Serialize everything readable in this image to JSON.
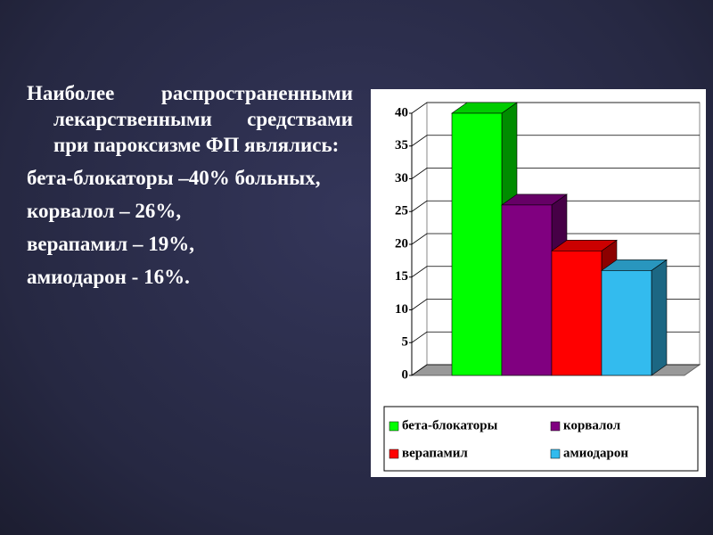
{
  "slide_text": {
    "intro": "Наиболее распространенными лекарственными средствами при пароксизме ФП являлись:",
    "items": [
      "бета-блокаторы –40% больных,",
      "корвалол – 26%,",
      "верапамил – 19%,",
      "амиодарон - 16%."
    ]
  },
  "chart_data": {
    "type": "bar3d",
    "series": [
      {
        "name": "бета-блокаторы",
        "color": "#00ff00",
        "values": [
          40
        ]
      },
      {
        "name": "корвалол",
        "color": "#800080",
        "values": [
          26
        ]
      },
      {
        "name": "верапамил",
        "color": "#ff0000",
        "values": [
          19
        ]
      },
      {
        "name": "амиодарон",
        "color": "#33bbee",
        "values": [
          16
        ]
      }
    ],
    "ylim": [
      0,
      40
    ],
    "yticks": [
      0,
      5,
      10,
      15,
      20,
      25,
      30,
      35,
      40
    ],
    "grid": true
  }
}
